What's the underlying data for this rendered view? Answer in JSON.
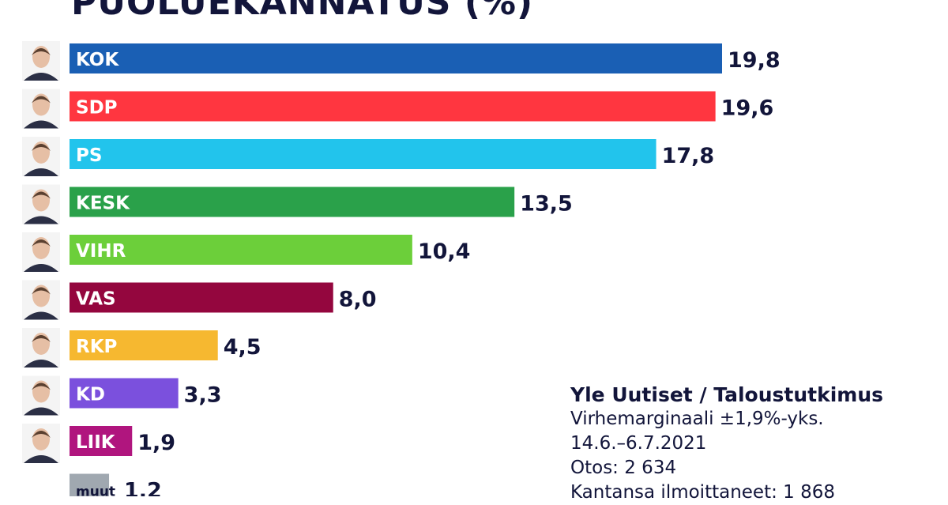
{
  "chart_data": {
    "type": "bar",
    "orientation": "horizontal",
    "title": "PUOLUEKANNATUS (%)",
    "categories": [
      "KOK",
      "SDP",
      "PS",
      "KESK",
      "VIHR",
      "VAS",
      "RKP",
      "KD",
      "LIIK",
      "muut"
    ],
    "values": [
      19.8,
      19.6,
      17.8,
      13.5,
      10.4,
      8.0,
      4.5,
      3.3,
      1.9,
      1.2
    ],
    "value_labels": [
      "19,8",
      "19,6",
      "17,8",
      "13,5",
      "10,4",
      "8,0",
      "4,5",
      "3,3",
      "1,9",
      "1,2"
    ],
    "colors": [
      "#1a5fb4",
      "#ff3640",
      "#22c4ec",
      "#2aa14a",
      "#6ccf3a",
      "#94063e",
      "#f6b830",
      "#7b50dd",
      "#b0157e",
      "#a0a8b0"
    ],
    "xlim": [
      0,
      19.8
    ],
    "grid": false,
    "legend": "none"
  },
  "source": {
    "title": "Yle Uutiset / Taloustutkimus",
    "lines": [
      "Virhemarginaali ±1,9%-yks.",
      "14.6.–6.7.2021",
      "Otos: 2 634",
      "Kantansa ilmoittaneet: 1 868"
    ]
  }
}
